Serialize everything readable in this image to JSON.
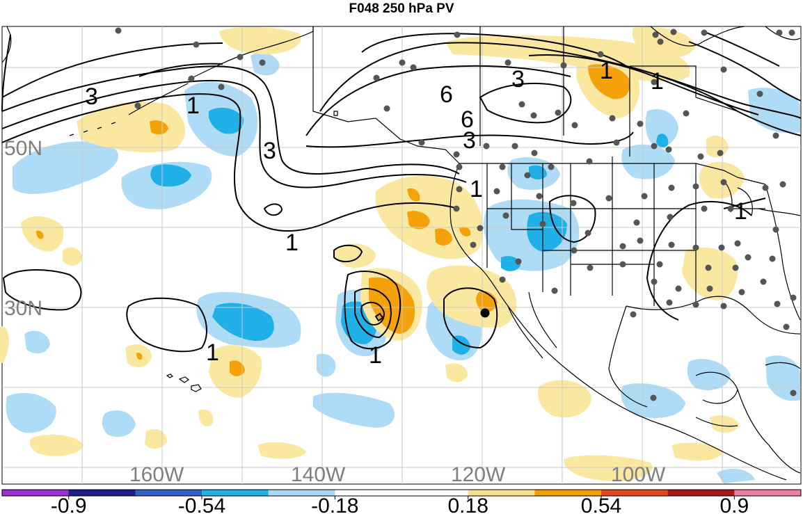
{
  "title": "F048 250 hPa PV",
  "lat_labels": [
    "50N",
    "30N"
  ],
  "lon_labels": [
    "160W",
    "140W",
    "120W",
    "100W"
  ],
  "contour_labels": [
    "3",
    "1",
    "3",
    "6",
    "6",
    "3",
    "3",
    "1",
    "1",
    "1",
    "1",
    "1",
    "1",
    "1"
  ],
  "colorbar": {
    "labels": [
      "-0.9",
      "-0.54",
      "-0.18",
      "0.18",
      "0.54",
      "0.9"
    ],
    "colors": [
      "#9b30d0",
      "#1c1c8c",
      "#2f5fc8",
      "#1fb0e8",
      "#a8d8f2",
      "#ffffff",
      "#ffffff",
      "#f8e08e",
      "#f6a000",
      "#e8441c",
      "#a8181c",
      "#f07ca8"
    ]
  },
  "colors": {
    "neg_light": "#aedcf6",
    "neg_mid": "#1fb0e8",
    "pos_light": "#fbe8a0",
    "pos_mid": "#f5a20a",
    "coast": "#000000",
    "grid": "#c8c8c8",
    "station": "#555555"
  }
}
